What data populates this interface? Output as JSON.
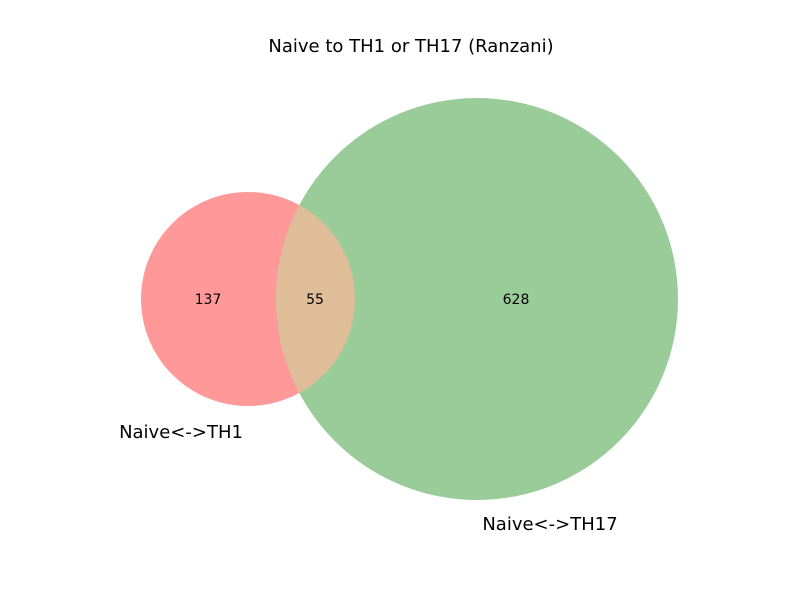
{
  "title": "Naive to TH1 or TH17 (Ranzani)",
  "chart_data": {
    "type": "venn",
    "title": "Naive to TH1 or TH17 (Ranzani)",
    "sets": [
      {
        "name": "Naive<->TH1",
        "only": 137,
        "color": "#ff9999"
      },
      {
        "name": "Naive<->TH17",
        "only": 628,
        "color": "#99cc99"
      }
    ],
    "intersection": {
      "count": 55,
      "color": "#dfbd99"
    }
  }
}
